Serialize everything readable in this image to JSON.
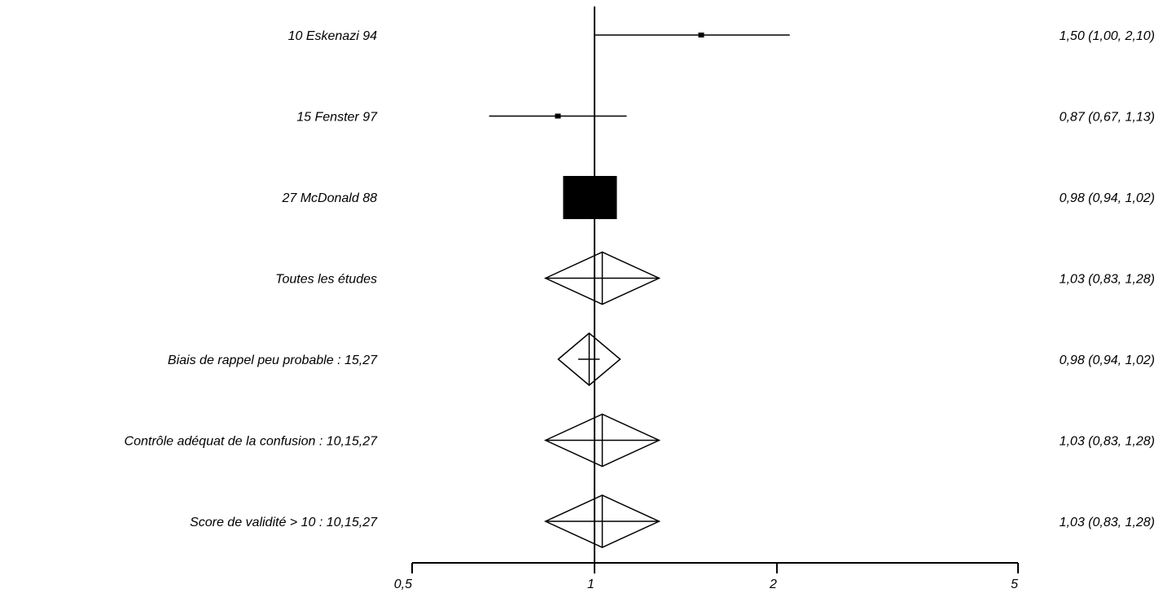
{
  "chart_data": {
    "type": "forest",
    "scale": "log",
    "reference_value": 1,
    "xlim": [
      0.5,
      5
    ],
    "x_ticks": [
      {
        "value": 0.5,
        "label": "0,5"
      },
      {
        "value": 1,
        "label": "1"
      },
      {
        "value": 2,
        "label": "2"
      },
      {
        "value": 5,
        "label": "5"
      }
    ],
    "rows": [
      {
        "label": "10 Eskenazi 94",
        "kind": "study",
        "estimate": 1.5,
        "ci": [
          1.0,
          2.1
        ],
        "weight": "small",
        "value_text": "1,50 (1,00, 2,10)"
      },
      {
        "label": "15 Fenster 97",
        "kind": "study",
        "estimate": 0.87,
        "ci": [
          0.67,
          1.13
        ],
        "weight": "small",
        "value_text": "0,87 (0,67, 1,13)"
      },
      {
        "label": "27 McDonald 88",
        "kind": "study",
        "estimate": 0.98,
        "ci": [
          0.94,
          1.02
        ],
        "weight": "large",
        "value_text": "0,98 (0,94, 1,02)"
      },
      {
        "label": "Toutes les études",
        "kind": "pooled",
        "estimate": 1.03,
        "ci": [
          0.83,
          1.28
        ],
        "value_text": "1,03 (0,83, 1,28)"
      },
      {
        "label": "Biais de rappel peu probable : 15,27",
        "kind": "pooled",
        "estimate": 0.98,
        "ci": [
          0.94,
          1.02
        ],
        "value_text": "0,98 (0,94, 1,02)"
      },
      {
        "label": "Contrôle adéquat de la confusion : 10,15,27",
        "kind": "pooled",
        "estimate": 1.03,
        "ci": [
          0.83,
          1.28
        ],
        "value_text": "1,03 (0,83, 1,28)"
      },
      {
        "label": "Score de validité > 10 : 10,15,27",
        "kind": "pooled",
        "estimate": 1.03,
        "ci": [
          0.83,
          1.28
        ],
        "value_text": "1,03 (0,83, 1,28)"
      }
    ]
  }
}
